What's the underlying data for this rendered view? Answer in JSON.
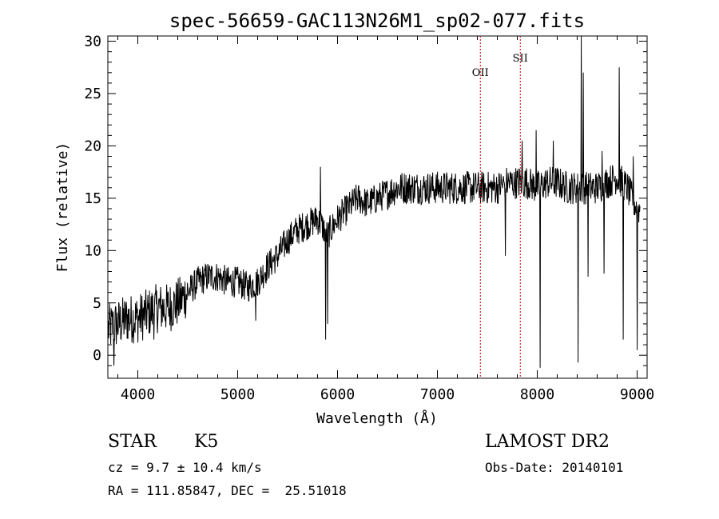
{
  "chart_data": {
    "type": "line",
    "title": "spec-56659-GAC113N26M1_sp02-077.fits",
    "xlabel": "Wavelength (Å)",
    "ylabel": "Flux (relative)",
    "xlim": [
      3700,
      9100
    ],
    "ylim": [
      -2.2,
      30.5
    ],
    "xticks": [
      4000,
      5000,
      6000,
      7000,
      8000,
      9000
    ],
    "yticks": [
      0,
      5,
      10,
      15,
      20,
      25,
      30
    ],
    "grid": false,
    "series_color": "#000000",
    "line_marker_color": "#cc0000",
    "lines": [
      {
        "label": "OII",
        "wavelength": 7430
      },
      {
        "label": "SII",
        "wavelength": 7830
      }
    ],
    "anchors": {
      "x": [
        3700,
        3800,
        3900,
        4000,
        4100,
        4200,
        4300,
        4400,
        4500,
        4600,
        4700,
        4800,
        4900,
        5000,
        5100,
        5200,
        5300,
        5400,
        5500,
        5600,
        5700,
        5800,
        5900,
        6000,
        6100,
        6200,
        6300,
        6400,
        6500,
        6600,
        6700,
        6800,
        6900,
        7000,
        7100,
        7200,
        7300,
        7400,
        7500,
        7600,
        7700,
        7800,
        7900,
        8000,
        8100,
        8200,
        8300,
        8400,
        8500,
        8600,
        8700,
        8800,
        8900,
        9000
      ],
      "y": [
        2.5,
        3.0,
        3.5,
        3.5,
        4.0,
        4.5,
        4.5,
        5.0,
        6.0,
        7.0,
        7.5,
        7.5,
        7.0,
        7.0,
        6.5,
        7.0,
        8.5,
        9.5,
        11.0,
        12.0,
        12.5,
        13.0,
        11.5,
        13.0,
        14.0,
        15.0,
        14.5,
        15.0,
        15.5,
        16.0,
        16.0,
        16.0,
        16.0,
        16.0,
        16.0,
        16.0,
        16.0,
        16.0,
        16.0,
        16.0,
        16.5,
        16.5,
        16.5,
        16.0,
        16.5,
        16.5,
        16.0,
        16.0,
        16.0,
        16.0,
        16.5,
        17.0,
        16.0,
        14.0
      ]
    },
    "spikes": [
      {
        "x": 5880,
        "y": 1.5
      },
      {
        "x": 5900,
        "y": 3.0
      },
      {
        "x": 5180,
        "y": 3.3
      },
      {
        "x": 4160,
        "y": 1.5
      },
      {
        "x": 3760,
        "y": -1.0
      },
      {
        "x": 5830,
        "y": 18.0
      },
      {
        "x": 5785,
        "y": 14.0
      },
      {
        "x": 7680,
        "y": 9.5
      },
      {
        "x": 7770,
        "y": 17.5
      },
      {
        "x": 7850,
        "y": 20.5
      },
      {
        "x": 7990,
        "y": 21.5
      },
      {
        "x": 8030,
        "y": -1.2
      },
      {
        "x": 8160,
        "y": 20.5
      },
      {
        "x": 8410,
        "y": -0.7
      },
      {
        "x": 8440,
        "y": 30.5
      },
      {
        "x": 8460,
        "y": 27.0
      },
      {
        "x": 8510,
        "y": 7.5
      },
      {
        "x": 8650,
        "y": 19.5
      },
      {
        "x": 8670,
        "y": 7.8
      },
      {
        "x": 8820,
        "y": 27.5
      },
      {
        "x": 8860,
        "y": 1.5
      },
      {
        "x": 8960,
        "y": 19.0
      },
      {
        "x": 9000,
        "y": 0.5
      }
    ]
  },
  "info": {
    "class_label": "STAR",
    "subclass_label": "K5",
    "survey": "LAMOST DR2",
    "cz": "cz = 9.7 ± 10.4 km/s",
    "obs_date": "Obs-Date: 20140101",
    "coords": "RA = 111.85847, DEC =  25.51018"
  }
}
